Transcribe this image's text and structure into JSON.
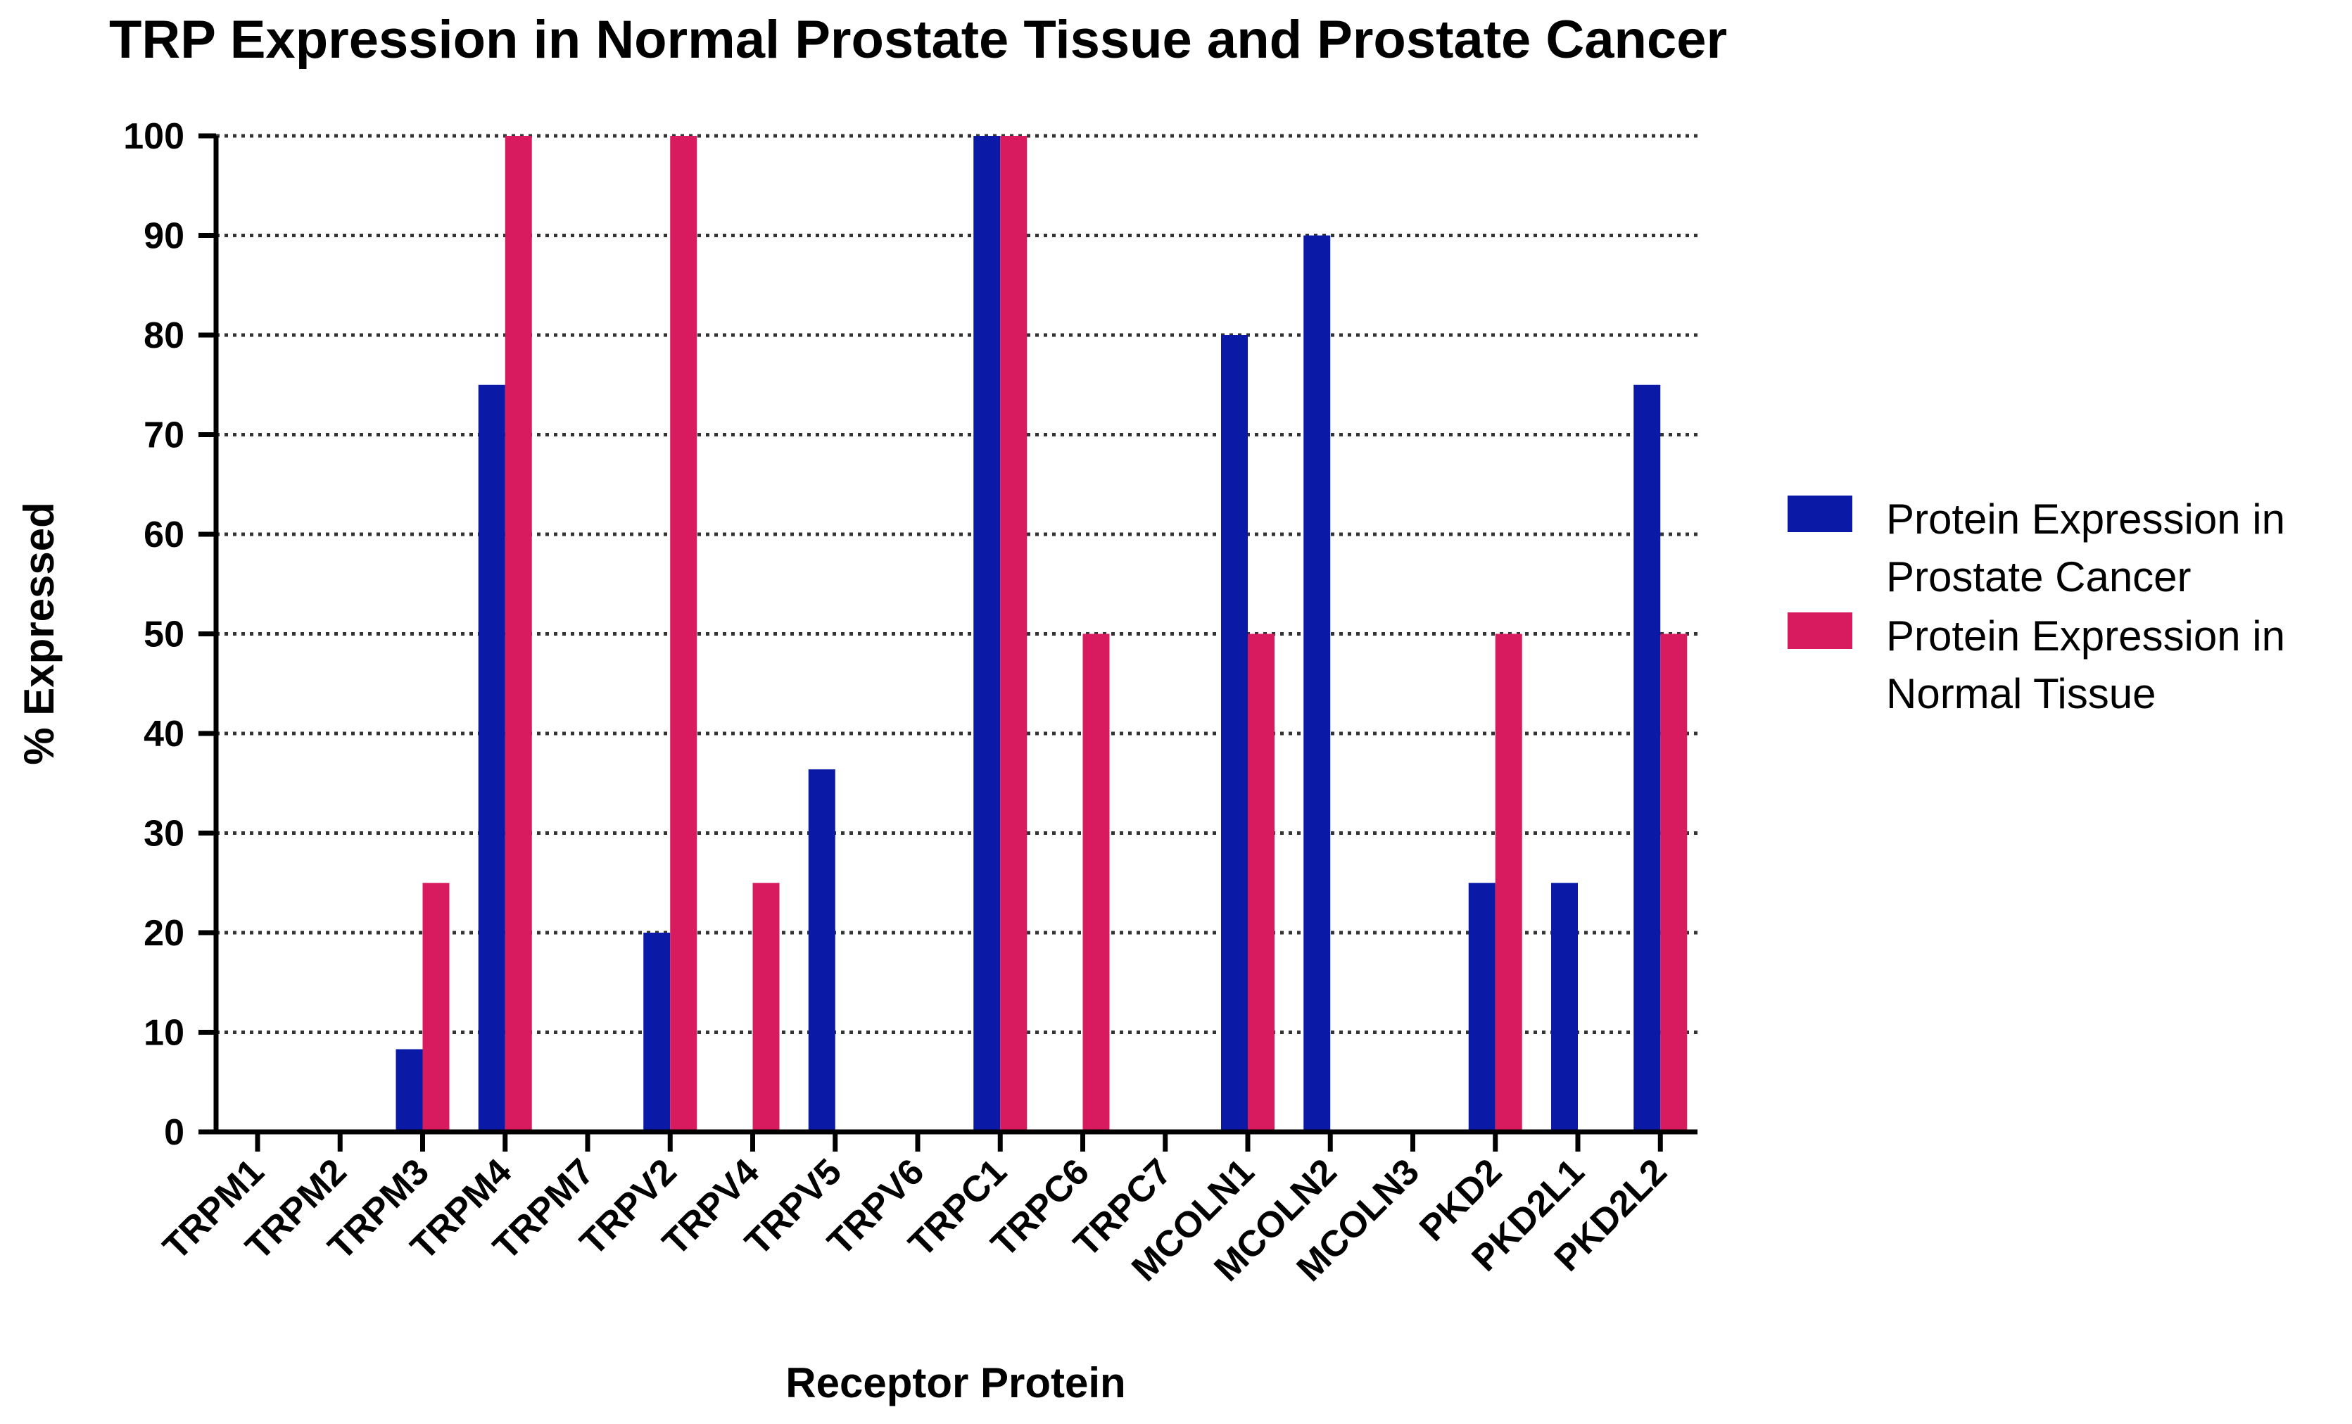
{
  "chart_data": {
    "type": "bar",
    "title": "TRP Expression in Normal Prostate Tissue and Prostate Cancer",
    "xlabel": "Receptor Protein",
    "ylabel": "% Expressed",
    "ylim": [
      0,
      100
    ],
    "yticks": [
      "0",
      "10",
      "20",
      "30",
      "40",
      "50",
      "60",
      "70",
      "80",
      "90",
      "100"
    ],
    "ytick_values": [
      0,
      10,
      20,
      30,
      40,
      50,
      60,
      70,
      80,
      90,
      100
    ],
    "grid": true,
    "legend_position": "right",
    "categories": [
      "TRPM1",
      "TRPM2",
      "TRPM3",
      "TRPM4",
      "TRPM7",
      "TRPV2",
      "TRPV4",
      "TRPV5",
      "TRPV6",
      "TRPC1",
      "TRPC6",
      "TRPC7",
      "MCOLN1",
      "MCOLN2",
      "MCOLN3",
      "PKD2",
      "PKD2L1",
      "PKD2L2"
    ],
    "series": [
      {
        "name": "Protein Expression in Prostate Cancer",
        "legend_lines": [
          "Protein Expression in",
          "Prostate Cancer"
        ],
        "color": "#0a1aa6",
        "values": [
          0,
          0,
          8.3,
          75,
          0,
          20,
          0,
          36.4,
          0,
          100,
          0,
          0,
          80,
          90,
          0,
          25,
          25,
          75
        ]
      },
      {
        "name": "Protein Expression in Normal Tissue",
        "legend_lines": [
          "Protein Expression in",
          "Normal Tissue"
        ],
        "color": "#d81b5e",
        "values": [
          0,
          0,
          25,
          100,
          0,
          100,
          25,
          0,
          0,
          100,
          50,
          0,
          50,
          0,
          0,
          50,
          0,
          50
        ]
      }
    ]
  }
}
